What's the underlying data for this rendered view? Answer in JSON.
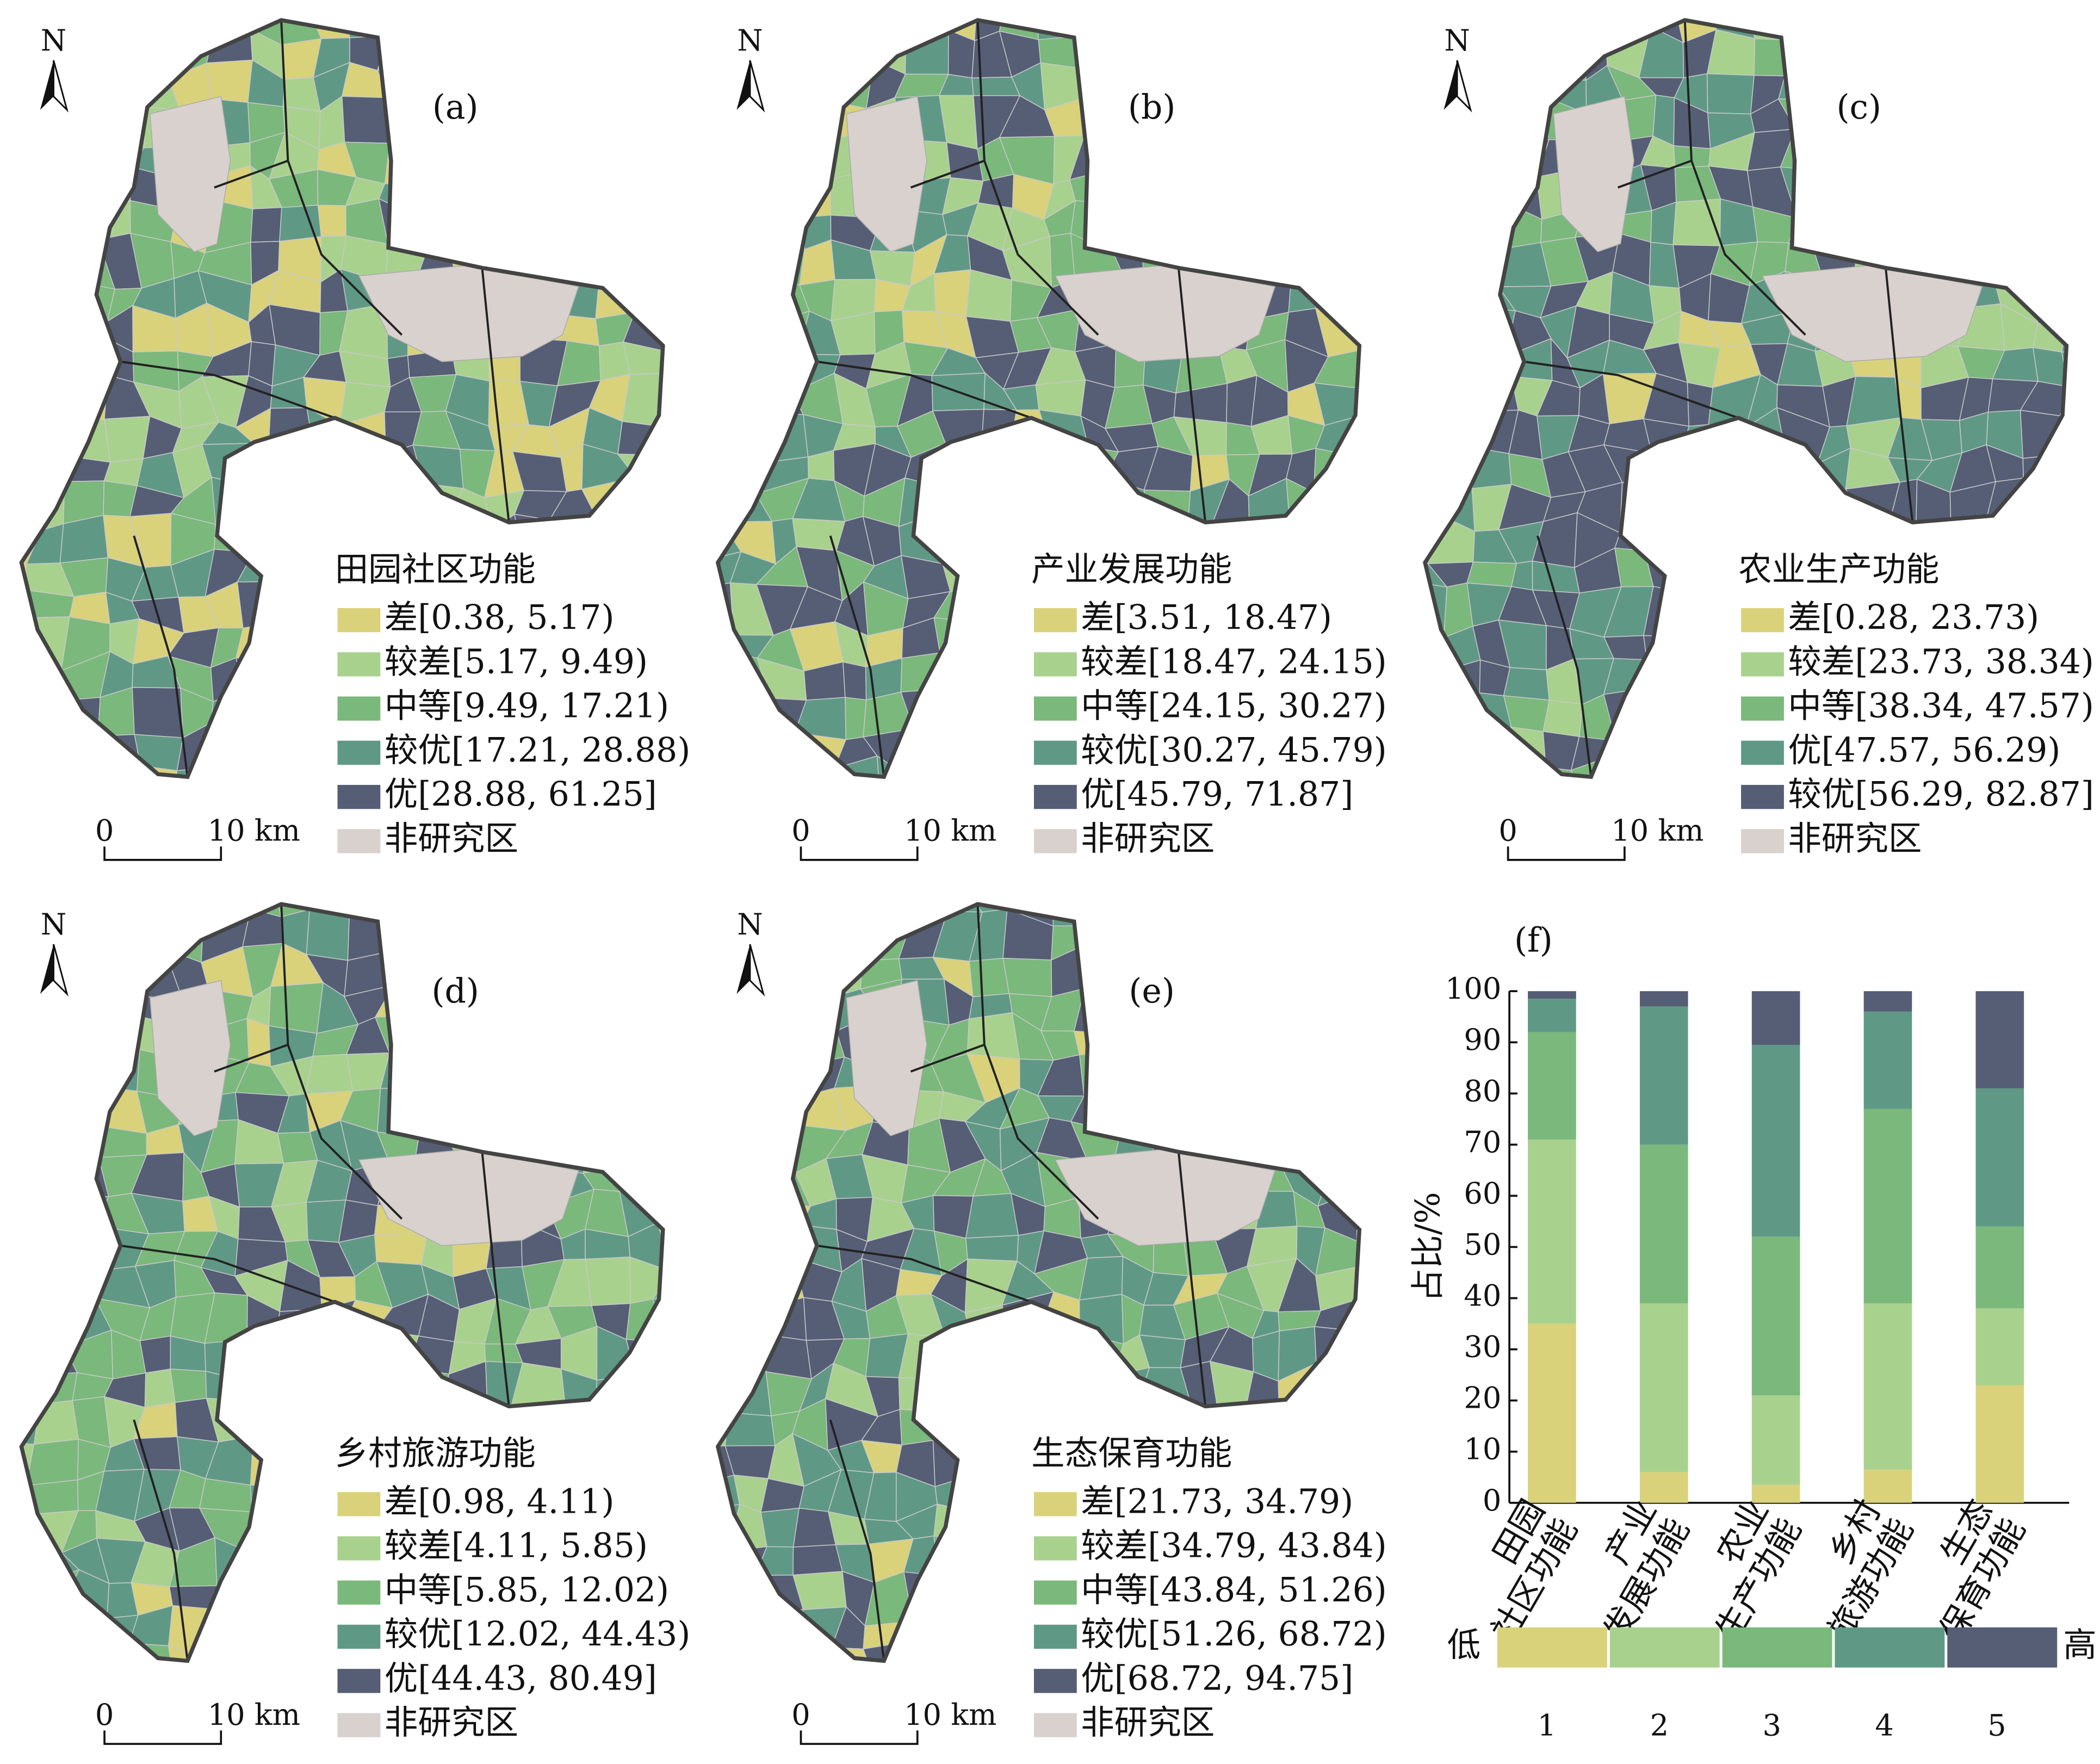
{
  "maps": [
    {
      "label": "(a)",
      "north": "N",
      "legend_title": "田园社区功能",
      "classes": [
        "差[0.38, 5.17)",
        "较差[5.17, 9.49)",
        "中等[9.49, 17.21)",
        "较优[17.21, 28.88)",
        "优[28.88, 61.25]"
      ],
      "non_study": "非研究区",
      "scale": [
        "0",
        "10 km"
      ]
    },
    {
      "label": "(b)",
      "north": "N",
      "legend_title": "产业发展功能",
      "classes": [
        "差[3.51, 18.47)",
        "较差[18.47, 24.15)",
        "中等[24.15, 30.27)",
        "较优[30.27, 45.79)",
        "优[45.79, 71.87]"
      ],
      "non_study": "非研究区",
      "scale": [
        "0",
        "10 km"
      ]
    },
    {
      "label": "(c)",
      "north": "N",
      "legend_title": "农业生产功能",
      "classes": [
        "差[0.28, 23.73)",
        "较差[23.73, 38.34)",
        "中等[38.34, 47.57)",
        "优[47.57, 56.29)",
        "较优[56.29, 82.87]"
      ],
      "non_study": "非研究区",
      "scale": [
        "0",
        "10 km"
      ]
    },
    {
      "label": "(d)",
      "north": "N",
      "legend_title": "乡村旅游功能",
      "classes": [
        "差[0.98, 4.11)",
        "较差[4.11, 5.85)",
        "中等[5.85, 12.02)",
        "较优[12.02, 44.43)",
        "优[44.43, 80.49]"
      ],
      "non_study": "非研究区",
      "scale": [
        "0",
        "10 km"
      ]
    },
    {
      "label": "(e)",
      "north": "N",
      "legend_title": "生态保育功能",
      "classes": [
        "差[21.73, 34.79)",
        "较差[34.79, 43.84)",
        "中等[43.84, 51.26)",
        "较优[51.26, 68.72)",
        "优[68.72, 94.75]"
      ],
      "non_study": "非研究区",
      "scale": [
        "0",
        "10 km"
      ]
    }
  ],
  "chart_data": {
    "type": "stacked_bar",
    "title": "(f)",
    "y_label": "占比/%",
    "categories": [
      [
        "田园",
        "社区功能"
      ],
      [
        "产业",
        "发展功能"
      ],
      [
        "农业",
        "生产功能"
      ],
      [
        "乡村",
        "旅游功能"
      ],
      [
        "生态",
        "保育功能"
      ]
    ],
    "series": [
      {
        "name": "1",
        "color": "#d9d27b",
        "values": [
          35,
          6,
          3.5,
          6.5,
          23
        ]
      },
      {
        "name": "2",
        "color": "#a9d18e",
        "values": [
          36,
          33,
          17.5,
          32.5,
          15
        ]
      },
      {
        "name": "3",
        "color": "#7ab87b",
        "values": [
          21,
          31,
          31,
          38,
          16
        ]
      },
      {
        "name": "4",
        "color": "#5f9986",
        "values": [
          6.5,
          27,
          37.5,
          19,
          27
        ]
      },
      {
        "name": "5",
        "color": "#555e75",
        "values": [
          1.5,
          3,
          10.5,
          4,
          19
        ]
      }
    ],
    "legend_low": "低",
    "legend_high": "高",
    "ylim": [
      0,
      100
    ],
    "yticks": [
      0,
      10,
      20,
      30,
      40,
      50,
      60,
      70,
      80,
      90,
      100
    ],
    "grid": false
  }
}
